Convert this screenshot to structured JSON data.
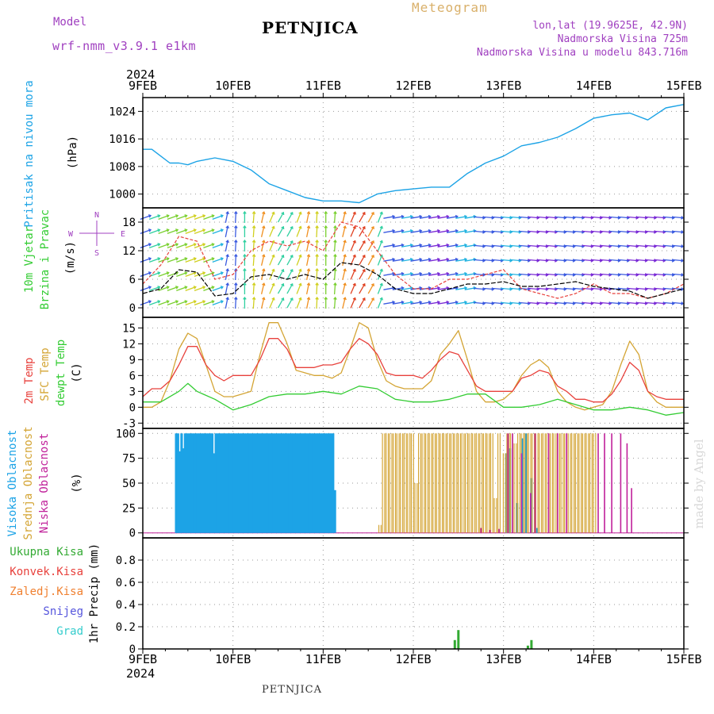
{
  "header": {
    "model_label": "Model",
    "model_name": "wrf-nmm_v3.9.1  e1km",
    "station": "PETNJICA",
    "product": "Meteogram",
    "lonlat": "lon,lat (19.9625E, 42.9N)",
    "elevation": "Nadmorska Visina 725m",
    "model_elevation": "Nadmorska Visina u modelu 843.716m",
    "year": "2024",
    "footer_station": "PETNJICA",
    "credit": "made by Angel"
  },
  "colors": {
    "pressure": "#1ca3e6",
    "temp2m": "#e8413c",
    "sfc_temp": "#d4a535",
    "dewpt": "#33cc33",
    "high_cloud": "#1ca3e6",
    "mid_cloud": "#d4a535",
    "low_cloud": "#c0209a",
    "total_precip": "#33aa33",
    "conv_precip": "#e8413c",
    "frz_precip": "#f08030",
    "snow": "#5555dd",
    "graupel": "#33cccc",
    "wind_speed": "#000000",
    "gust": "#e8413c",
    "compass": "#a040c0"
  },
  "x_axis": {
    "start_label": "9FEB",
    "ticks": [
      "9FEB",
      "10FEB",
      "11FEB",
      "12FEB",
      "13FEB",
      "14FEB",
      "15FEB"
    ],
    "year_label": "2024"
  },
  "chart_data": [
    {
      "type": "line",
      "panel": "pressure",
      "labels": [
        "Pritisak na nivou mora",
        "(hPa)"
      ],
      "x_unit": "days since 9FEB 00",
      "ylim": [
        996,
        1028
      ],
      "y_ticks": [
        1000,
        1008,
        1016,
        1024
      ],
      "series": [
        {
          "name": "Pritisak na nivou mora",
          "x": [
            0,
            0.1,
            0.2,
            0.3,
            0.4,
            0.5,
            0.6,
            0.7,
            0.8,
            0.9,
            1,
            1.2,
            1.4,
            1.6,
            1.8,
            2,
            2.2,
            2.4,
            2.6,
            2.8,
            3,
            3.2,
            3.4,
            3.6,
            3.8,
            4,
            4.2,
            4.4,
            4.6,
            4.8,
            5,
            5.2,
            5.4,
            5.6,
            5.8,
            6
          ],
          "y": [
            1013,
            1013,
            1011,
            1009,
            1009,
            1008.5,
            1009.5,
            1010,
            1010.5,
            1010,
            1009.5,
            1007,
            1003,
            1001,
            999,
            998,
            998,
            997.5,
            1000,
            1001,
            1001.5,
            1002,
            1002,
            1006,
            1009,
            1011,
            1014,
            1015,
            1016.5,
            1019,
            1022,
            1023,
            1023.5,
            1021.5,
            1025,
            1026
          ]
        }
      ]
    },
    {
      "type": "line",
      "panel": "wind",
      "labels": [
        "10m Vjetar",
        "Brzina i Pravac",
        "(m/s)"
      ],
      "compass": [
        "N",
        "W",
        "E",
        "S"
      ],
      "ylim": [
        -2,
        21
      ],
      "y_ticks": [
        0,
        6,
        12,
        18
      ],
      "series": [
        {
          "name": "speed",
          "x": [
            0,
            0.2,
            0.4,
            0.6,
            0.8,
            1,
            1.2,
            1.4,
            1.6,
            1.8,
            2,
            2.2,
            2.4,
            2.6,
            2.8,
            3,
            3.2,
            3.4,
            3.6,
            3.8,
            4,
            4.2,
            4.4,
            4.6,
            4.8,
            5,
            5.2,
            5.4,
            5.6,
            5.8,
            6
          ],
          "y": [
            3,
            4,
            8,
            7.5,
            2.5,
            3,
            6.5,
            7,
            6,
            7,
            6,
            9.5,
            9,
            7,
            4,
            3,
            3,
            4,
            5,
            5,
            5.5,
            4.5,
            4.5,
            5,
            5.5,
            4.5,
            4,
            3.5,
            2,
            3,
            4
          ]
        },
        {
          "name": "gust",
          "x": [
            0,
            0.2,
            0.4,
            0.6,
            0.8,
            1,
            1.2,
            1.4,
            1.6,
            1.8,
            2,
            2.2,
            2.4,
            2.6,
            2.8,
            3,
            3.2,
            3.4,
            3.6,
            3.8,
            4,
            4.2,
            4.4,
            4.6,
            4.8,
            5,
            5.2,
            5.4,
            5.6,
            5.8,
            6
          ],
          "y": [
            5,
            9,
            15,
            14,
            6,
            7,
            12,
            14,
            13,
            14,
            12,
            18,
            17,
            12,
            7,
            4,
            4,
            6,
            6,
            7,
            8,
            4,
            3,
            2,
            3,
            5,
            3,
            3,
            2,
            3,
            5
          ]
        }
      ]
    },
    {
      "type": "line",
      "panel": "temperature",
      "labels": [
        "2m Temp",
        "SFC Temp",
        "dewpt Temp",
        "(C)"
      ],
      "ylim": [
        -4,
        17
      ],
      "y_ticks": [
        -3,
        0,
        3,
        6,
        9,
        12,
        15
      ],
      "series": [
        {
          "name": "2m Temp",
          "x": [
            0,
            0.1,
            0.2,
            0.3,
            0.4,
            0.5,
            0.6,
            0.7,
            0.8,
            0.9,
            1,
            1.1,
            1.2,
            1.3,
            1.4,
            1.5,
            1.6,
            1.7,
            1.8,
            1.9,
            2,
            2.1,
            2.2,
            2.3,
            2.4,
            2.5,
            2.6,
            2.7,
            2.8,
            2.9,
            3,
            3.1,
            3.2,
            3.3,
            3.4,
            3.5,
            3.6,
            3.7,
            3.8,
            3.9,
            4,
            4.1,
            4.2,
            4.3,
            4.4,
            4.5,
            4.6,
            4.7,
            4.8,
            4.9,
            5,
            5.1,
            5.2,
            5.3,
            5.4,
            5.5,
            5.6,
            5.7,
            5.8,
            5.9,
            6
          ],
          "y": [
            2,
            3.5,
            3.5,
            5,
            8,
            11.5,
            11.5,
            8,
            6,
            5,
            6,
            6,
            6,
            9,
            13,
            13,
            11,
            7.5,
            7.5,
            7.5,
            8,
            8,
            8.5,
            11,
            13,
            12,
            10,
            6.5,
            6,
            6,
            6,
            5.5,
            7,
            9,
            10.5,
            10,
            7,
            4,
            3,
            3,
            3,
            3,
            5.5,
            6,
            7,
            6.5,
            4,
            3,
            1.5,
            1.5,
            1,
            1,
            2.5,
            5,
            8.5,
            7,
            3,
            2,
            1.5,
            1.5,
            1.5
          ]
        },
        {
          "name": "SFC Temp",
          "x": [
            0,
            0.1,
            0.2,
            0.3,
            0.4,
            0.5,
            0.6,
            0.7,
            0.8,
            0.9,
            1,
            1.1,
            1.2,
            1.3,
            1.4,
            1.5,
            1.6,
            1.7,
            1.8,
            1.9,
            2,
            2.1,
            2.2,
            2.3,
            2.4,
            2.5,
            2.6,
            2.7,
            2.8,
            2.9,
            3,
            3.1,
            3.2,
            3.3,
            3.4,
            3.5,
            3.6,
            3.7,
            3.8,
            3.9,
            4,
            4.1,
            4.2,
            4.3,
            4.4,
            4.5,
            4.6,
            4.7,
            4.8,
            4.9,
            5,
            5.1,
            5.2,
            5.3,
            5.4,
            5.5,
            5.6,
            5.7,
            5.8,
            5.9,
            6
          ],
          "y": [
            0,
            0,
            1,
            5,
            11,
            14,
            13,
            8,
            3,
            2,
            2,
            2.5,
            3,
            10,
            16,
            16,
            12,
            7,
            6.5,
            6,
            6,
            5.5,
            6.5,
            11,
            16,
            15,
            9,
            5,
            4,
            3.5,
            3.5,
            3.5,
            5,
            10,
            12,
            14.5,
            9,
            3,
            1,
            1,
            1.5,
            3,
            6,
            8,
            9,
            7.5,
            3,
            1,
            0,
            -0.5,
            0,
            0.5,
            3,
            8,
            12.5,
            10,
            3,
            1,
            0,
            0,
            0
          ]
        },
        {
          "name": "dewpt Temp",
          "x": [
            0,
            0.2,
            0.4,
            0.5,
            0.6,
            0.8,
            1,
            1.2,
            1.4,
            1.6,
            1.8,
            2,
            2.2,
            2.4,
            2.6,
            2.8,
            3,
            3.2,
            3.4,
            3.6,
            3.8,
            4,
            4.2,
            4.4,
            4.6,
            4.8,
            5,
            5.2,
            5.4,
            5.6,
            5.8,
            6
          ],
          "y": [
            1,
            1,
            3,
            4.5,
            3,
            1.5,
            -0.5,
            0.5,
            2,
            2.5,
            2.5,
            3,
            2.5,
            4,
            3.5,
            1.5,
            1,
            1,
            1.5,
            2.5,
            2.5,
            0,
            0,
            0.5,
            1.5,
            0.5,
            -0.5,
            -0.5,
            0,
            -0.5,
            -1.5,
            -1
          ]
        }
      ]
    },
    {
      "type": "bar",
      "panel": "cloud",
      "labels": [
        "Visoka Oblacnost",
        "Srednja Oblacnost",
        "Niska Oblacnost",
        "(%)"
      ],
      "ylim": [
        -5,
        105
      ],
      "y_ticks": [
        0,
        25,
        50,
        75,
        100
      ],
      "series": [
        {
          "name": "Visoka Oblacnost",
          "x": [
            0.37,
            0.39,
            0.41,
            0.43,
            0.45,
            0.47,
            0.49,
            0.51,
            0.53,
            0.55,
            0.57,
            0.59,
            0.61,
            0.63,
            0.65,
            0.67,
            0.69,
            0.71,
            0.73,
            0.75,
            0.77,
            0.79,
            0.81,
            0.83,
            0.85,
            0.87,
            0.89,
            0.91,
            0.93,
            0.95,
            0.97,
            0.99,
            1.01,
            1.03,
            1.05,
            1.07,
            1.09,
            1.11,
            1.13,
            1.15,
            1.17,
            1.19,
            1.21,
            1.23,
            1.25,
            1.27,
            1.29,
            1.31,
            1.33,
            1.35,
            1.37,
            1.39,
            1.41,
            1.43,
            1.45,
            1.47,
            1.49,
            1.51,
            1.53,
            1.55,
            1.57,
            1.59,
            1.61,
            1.63,
            1.65,
            1.67,
            1.69,
            1.71,
            1.73,
            1.75,
            1.77,
            1.79,
            1.81,
            1.83,
            1.85,
            1.87,
            1.89,
            1.91,
            1.93,
            1.95,
            1.97,
            1.99,
            2.01,
            2.03,
            2.05,
            2.07,
            2.09,
            2.11,
            2.13,
            4.03,
            4.07,
            4.15,
            4.21,
            4.25,
            4.31,
            4.37
          ],
          "y": [
            100,
            100,
            82,
            100,
            85,
            100,
            100,
            100,
            100,
            100,
            100,
            100,
            100,
            100,
            100,
            100,
            100,
            100,
            100,
            100,
            100,
            80,
            100,
            100,
            100,
            100,
            100,
            100,
            100,
            100,
            100,
            100,
            100,
            100,
            100,
            100,
            100,
            100,
            100,
            100,
            100,
            100,
            100,
            100,
            100,
            100,
            100,
            100,
            100,
            100,
            100,
            100,
            100,
            100,
            100,
            100,
            100,
            100,
            100,
            100,
            100,
            100,
            100,
            100,
            100,
            100,
            100,
            100,
            100,
            100,
            100,
            100,
            100,
            100,
            100,
            100,
            100,
            100,
            100,
            100,
            100,
            100,
            100,
            100,
            100,
            100,
            100,
            100,
            43,
            80,
            85,
            30,
            95,
            100,
            55,
            5
          ]
        },
        {
          "name": "Srednja Oblacnost",
          "x": [
            2.63,
            2.67,
            2.71,
            2.75,
            2.79,
            2.83,
            2.87,
            2.91,
            2.95,
            2.99,
            3.03,
            3.07,
            3.11,
            3.15,
            3.19,
            3.23,
            3.27,
            3.31,
            3.35,
            3.39,
            3.43,
            3.47,
            3.51,
            3.55,
            3.59,
            3.63,
            3.67,
            3.71,
            3.75,
            3.79,
            3.83,
            3.87,
            3.91,
            3.95,
            4.01,
            4.05,
            4.09,
            4.13,
            4.17,
            4.21,
            4.25,
            4.29,
            4.33,
            4.37,
            4.41,
            4.45,
            4.49,
            4.53,
            4.57,
            4.61,
            4.65,
            4.69,
            4.73,
            4.77,
            4.81,
            4.85,
            4.89,
            4.93,
            4.97,
            5.01
          ],
          "y": [
            8,
            100,
            100,
            100,
            100,
            100,
            100,
            100,
            100,
            100,
            50,
            100,
            100,
            100,
            100,
            100,
            100,
            100,
            100,
            100,
            100,
            100,
            100,
            100,
            100,
            100,
            100,
            100,
            100,
            100,
            100,
            100,
            35,
            100,
            80,
            100,
            100,
            90,
            100,
            100,
            100,
            100,
            100,
            100,
            100,
            100,
            100,
            100,
            100,
            100,
            100,
            100,
            100,
            100,
            100,
            100,
            100,
            100,
            100,
            100
          ]
        },
        {
          "name": "Niska Oblacnost",
          "x": [
            3.75,
            3.85,
            3.95,
            4.05,
            4.1,
            4.2,
            4.3,
            4.35,
            4.5,
            4.6,
            4.7,
            5.05,
            5.12,
            5.2,
            5.3,
            5.37,
            5.42
          ],
          "y": [
            5,
            3,
            4,
            100,
            100,
            80,
            40,
            100,
            100,
            100,
            100,
            100,
            100,
            100,
            100,
            90,
            45
          ]
        }
      ]
    },
    {
      "type": "bar",
      "panel": "precip",
      "labels": [
        "Ukupna Kisa",
        "Konvek.Kisa",
        "Zaledj.Kisa",
        "Snijeg",
        "Grad",
        "1hr Precip (mm)"
      ],
      "ylim": [
        0,
        1.0
      ],
      "y_ticks": [
        0,
        0.2,
        0.4,
        0.6,
        0.8
      ],
      "series": [
        {
          "name": "Ukupna Kisa",
          "x": [
            3.46,
            3.5,
            4.27,
            4.31
          ],
          "y": [
            0.08,
            0.17,
            0.03,
            0.08
          ]
        }
      ]
    }
  ]
}
